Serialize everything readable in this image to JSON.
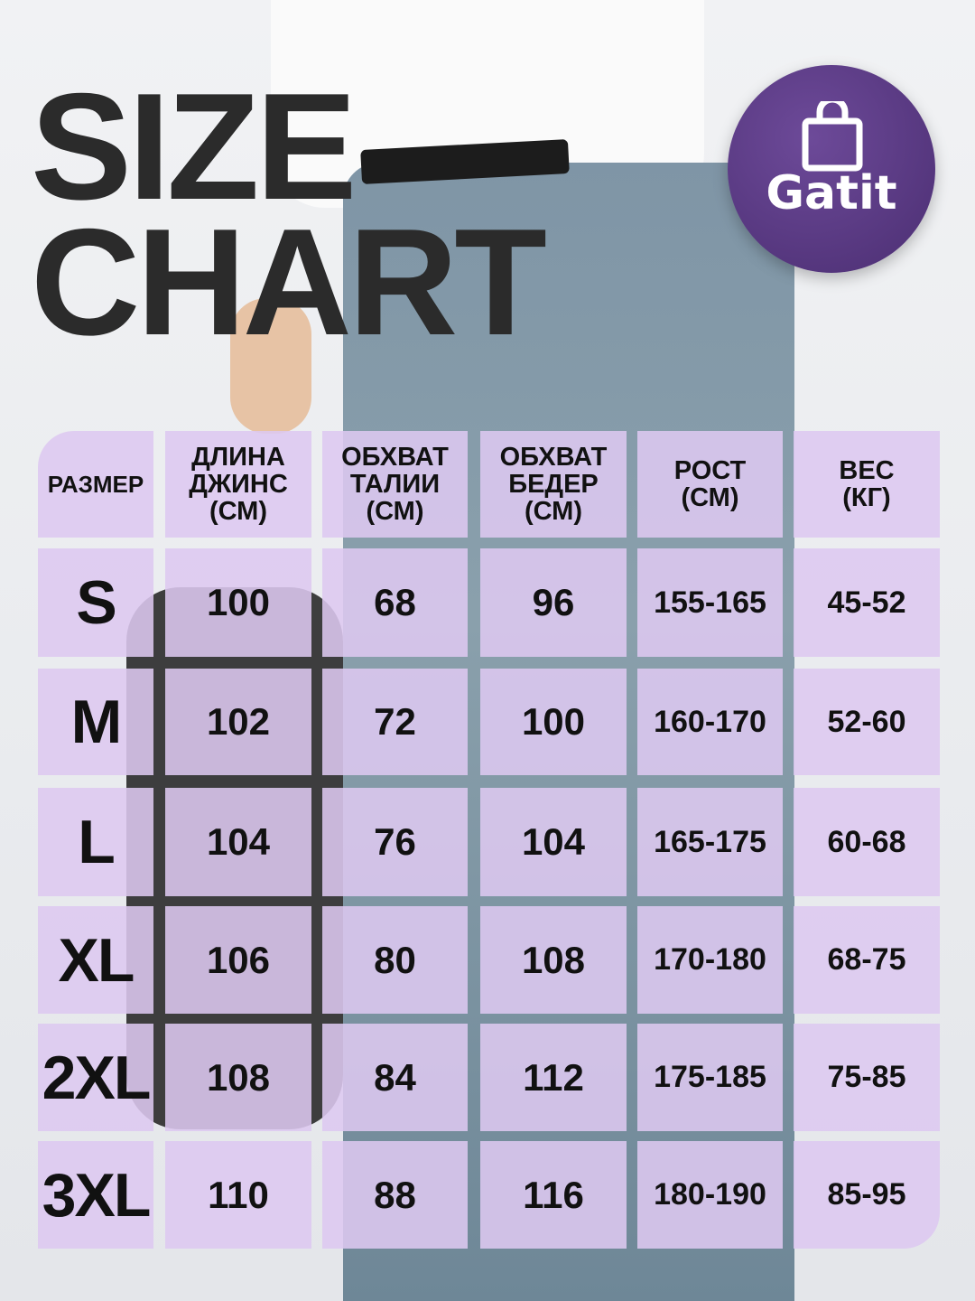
{
  "title": {
    "line1": "SIZE",
    "line2": "CHART"
  },
  "logo": {
    "text": "Gatit",
    "icon": "shopping-bag-icon",
    "color": "#5a3a85"
  },
  "table": {
    "headers": [
      "РАЗМЕР",
      "ДЛИНА ДЖИНС (СМ)",
      "ОБХВАТ ТАЛИИ (СМ)",
      "ОБХВАТ БЕДЕР (СМ)",
      "РОСТ (СМ)",
      "ВЕС (КГ)"
    ],
    "header_lines": [
      [
        "РАЗМЕР"
      ],
      [
        "ДЛИНА",
        "ДЖИНС",
        "(СМ)"
      ],
      [
        "ОБХВАТ",
        "ТАЛИИ",
        "(СМ)"
      ],
      [
        "ОБХВАТ",
        "БЕДЕР",
        "(СМ)"
      ],
      [
        "РОСТ",
        "(СМ)"
      ],
      [
        "ВЕС",
        "(КГ)"
      ]
    ],
    "rows": [
      [
        "S",
        "100",
        "68",
        "96",
        "155-165",
        "45-52"
      ],
      [
        "M",
        "102",
        "72",
        "100",
        "160-170",
        "52-60"
      ],
      [
        "L",
        "104",
        "76",
        "104",
        "165-175",
        "60-68"
      ],
      [
        "XL",
        "106",
        "80",
        "108",
        "170-180",
        "68-75"
      ],
      [
        "2XL",
        "108",
        "84",
        "112",
        "175-185",
        "75-85"
      ],
      [
        "3XL",
        "110",
        "88",
        "116",
        "180-190",
        "85-95"
      ]
    ],
    "cell_color": "#ddc8f0"
  }
}
